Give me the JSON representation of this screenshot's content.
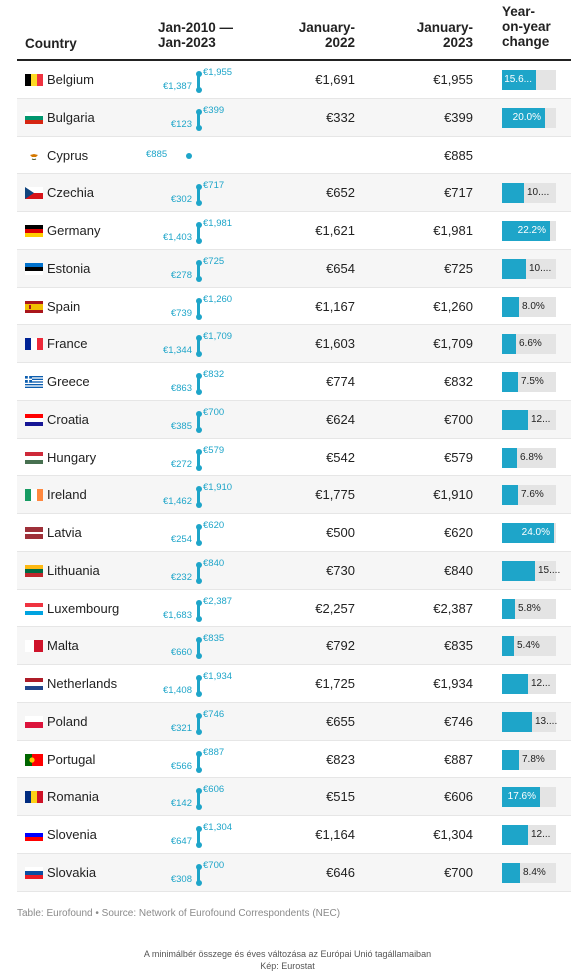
{
  "table": {
    "headers": {
      "country": "Country",
      "range": "Jan-2010 —\nJan-2023",
      "jan2022": "January-\n2022",
      "jan2023": "January-\n2023",
      "yoy": "Year-\non-year\nchange"
    },
    "source": "Table: Eurofound • Source: Network of Eurofound Correspondents (NEC)"
  },
  "caption": {
    "line1": "A minimálbér összege és éves változása az Európai Unió tagállamaiban",
    "line2": "Kép: Eurostat"
  },
  "chart_data": {
    "type": "table",
    "rows": [
      {
        "country": "Belgium",
        "flag": "be",
        "jan2010": "€1,387",
        "jan2023_mini": "€1,955",
        "jan2022": "€1,691",
        "jan2023": "€1,955",
        "yoy_label": "15.6...",
        "yoy_pct": 15.6
      },
      {
        "country": "Bulgaria",
        "flag": "bg",
        "jan2010": "€123",
        "jan2023_mini": "€399",
        "jan2022": "€332",
        "jan2023": "€399",
        "yoy_label": "20.0%",
        "yoy_pct": 20.0
      },
      {
        "country": "Cyprus",
        "flag": "cy",
        "jan2010": "",
        "jan2023_mini": "€885",
        "jan2022": "",
        "jan2023": "€885",
        "yoy_label": "",
        "yoy_pct": 0
      },
      {
        "country": "Czechia",
        "flag": "cz",
        "jan2010": "€302",
        "jan2023_mini": "€717",
        "jan2022": "€652",
        "jan2023": "€717",
        "yoy_label": "10....",
        "yoy_pct": 10.0
      },
      {
        "country": "Germany",
        "flag": "de",
        "jan2010": "€1,403",
        "jan2023_mini": "€1,981",
        "jan2022": "€1,621",
        "jan2023": "€1,981",
        "yoy_label": "22.2%",
        "yoy_pct": 22.2
      },
      {
        "country": "Estonia",
        "flag": "ee",
        "jan2010": "€278",
        "jan2023_mini": "€725",
        "jan2022": "€654",
        "jan2023": "€725",
        "yoy_label": "10....",
        "yoy_pct": 10.9
      },
      {
        "country": "Spain",
        "flag": "es",
        "jan2010": "€739",
        "jan2023_mini": "€1,260",
        "jan2022": "€1,167",
        "jan2023": "€1,260",
        "yoy_label": "8.0%",
        "yoy_pct": 8.0
      },
      {
        "country": "France",
        "flag": "fr",
        "jan2010": "€1,344",
        "jan2023_mini": "€1,709",
        "jan2022": "€1,603",
        "jan2023": "€1,709",
        "yoy_label": "6.6%",
        "yoy_pct": 6.6
      },
      {
        "country": "Greece",
        "flag": "gr",
        "jan2010": "€863",
        "jan2023_mini": "€832",
        "jan2022": "€774",
        "jan2023": "€832",
        "yoy_label": "7.5%",
        "yoy_pct": 7.5
      },
      {
        "country": "Croatia",
        "flag": "hr",
        "jan2010": "€385",
        "jan2023_mini": "€700",
        "jan2022": "€624",
        "jan2023": "€700",
        "yoy_label": "12...",
        "yoy_pct": 12.2
      },
      {
        "country": "Hungary",
        "flag": "hu",
        "jan2010": "€272",
        "jan2023_mini": "€579",
        "jan2022": "€542",
        "jan2023": "€579",
        "yoy_label": "6.8%",
        "yoy_pct": 6.8
      },
      {
        "country": "Ireland",
        "flag": "ie",
        "jan2010": "€1,462",
        "jan2023_mini": "€1,910",
        "jan2022": "€1,775",
        "jan2023": "€1,910",
        "yoy_label": "7.6%",
        "yoy_pct": 7.6
      },
      {
        "country": "Latvia",
        "flag": "lv",
        "jan2010": "€254",
        "jan2023_mini": "€620",
        "jan2022": "€500",
        "jan2023": "€620",
        "yoy_label": "24.0%",
        "yoy_pct": 24.0
      },
      {
        "country": "Lithuania",
        "flag": "lt",
        "jan2010": "€232",
        "jan2023_mini": "€840",
        "jan2022": "€730",
        "jan2023": "€840",
        "yoy_label": "15....",
        "yoy_pct": 15.1
      },
      {
        "country": "Luxembourg",
        "flag": "lu",
        "jan2010": "€1,683",
        "jan2023_mini": "€2,387",
        "jan2022": "€2,257",
        "jan2023": "€2,387",
        "yoy_label": "5.8%",
        "yoy_pct": 5.8
      },
      {
        "country": "Malta",
        "flag": "mt",
        "jan2010": "€660",
        "jan2023_mini": "€835",
        "jan2022": "€792",
        "jan2023": "€835",
        "yoy_label": "5.4%",
        "yoy_pct": 5.4
      },
      {
        "country": "Netherlands",
        "flag": "nl",
        "jan2010": "€1,408",
        "jan2023_mini": "€1,934",
        "jan2022": "€1,725",
        "jan2023": "€1,934",
        "yoy_label": "12...",
        "yoy_pct": 12.1
      },
      {
        "country": "Poland",
        "flag": "pl",
        "jan2010": "€321",
        "jan2023_mini": "€746",
        "jan2022": "€655",
        "jan2023": "€746",
        "yoy_label": "13....",
        "yoy_pct": 13.9
      },
      {
        "country": "Portugal",
        "flag": "pt",
        "jan2010": "€566",
        "jan2023_mini": "€887",
        "jan2022": "€823",
        "jan2023": "€887",
        "yoy_label": "7.8%",
        "yoy_pct": 7.8
      },
      {
        "country": "Romania",
        "flag": "ro",
        "jan2010": "€142",
        "jan2023_mini": "€606",
        "jan2022": "€515",
        "jan2023": "€606",
        "yoy_label": "17.6%",
        "yoy_pct": 17.6
      },
      {
        "country": "Slovenia",
        "flag": "si",
        "jan2010": "€647",
        "jan2023_mini": "€1,304",
        "jan2022": "€1,164",
        "jan2023": "€1,304",
        "yoy_label": "12...",
        "yoy_pct": 12.0
      },
      {
        "country": "Slovakia",
        "flag": "sk",
        "jan2010": "€308",
        "jan2023_mini": "€700",
        "jan2022": "€646",
        "jan2023": "€700",
        "yoy_label": "8.4%",
        "yoy_pct": 8.4
      }
    ],
    "yoy_max": 25,
    "colors": {
      "accent": "#1ea5c9",
      "track": "#e4e4e4"
    }
  }
}
